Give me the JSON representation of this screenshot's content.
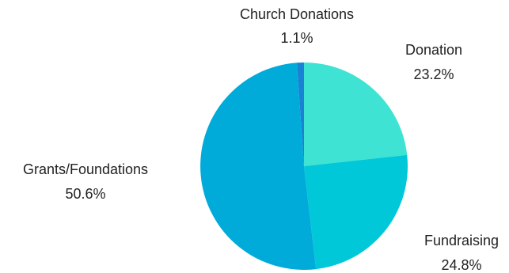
{
  "chart_data": {
    "type": "pie",
    "slices": [
      {
        "label": "Donation",
        "value": 23.2,
        "display": "23.2%",
        "color": "#3ee3d4"
      },
      {
        "label": "Fundraising",
        "value": 24.8,
        "display": "24.8%",
        "color": "#00c8d9"
      },
      {
        "label": "Grants/Foundations",
        "value": 50.6,
        "display": "50.6%",
        "color": "#00abda"
      },
      {
        "label": "Church Donations",
        "value": 1.1,
        "display": "1.1%",
        "color": "#1a82d4"
      }
    ],
    "start_angle_deg": 0,
    "direction": "clockwise",
    "legend": "none"
  }
}
